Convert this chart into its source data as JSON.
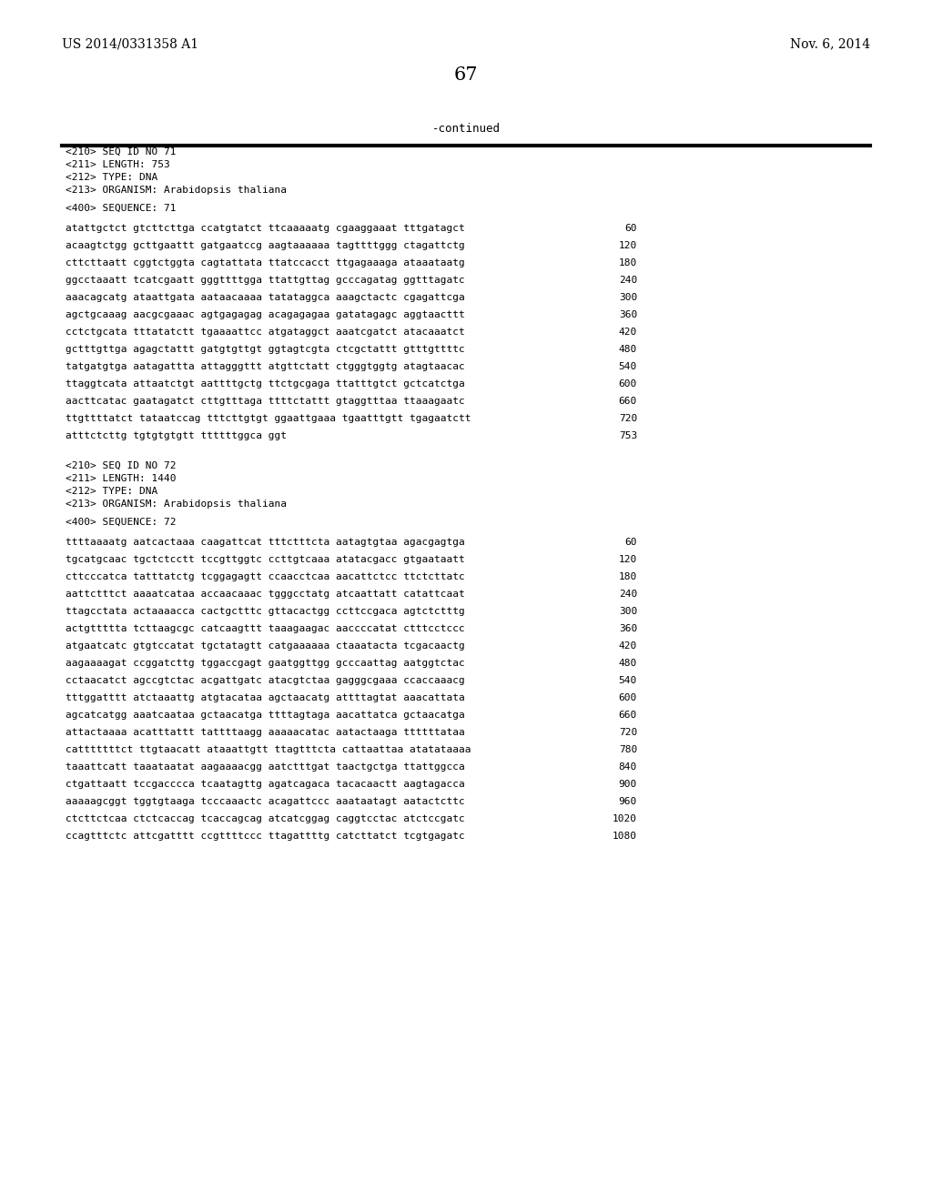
{
  "page_number": "67",
  "patent_number": "US 2014/0331358 A1",
  "patent_date": "Nov. 6, 2014",
  "continued_label": "-continued",
  "background_color": "#ffffff",
  "text_color": "#000000",
  "seq71_header": [
    "<210> SEQ ID NO 71",
    "<211> LENGTH: 753",
    "<212> TYPE: DNA",
    "<213> ORGANISM: Arabidopsis thaliana"
  ],
  "seq71_label": "<400> SEQUENCE: 71",
  "seq71_lines": [
    [
      "atattgctct gtcttcttga ccatgtatct ttcaaaaatg cgaaggaaat tttgatagct",
      "60"
    ],
    [
      "acaagtctgg gcttgaattt gatgaatccg aagtaaaaaa tagttttggg ctagattctg",
      "120"
    ],
    [
      "cttcttaatt cggtctggta cagtattata ttatccacct ttgagaaaga ataaataatg",
      "180"
    ],
    [
      "ggcctaaatt tcatcgaatt gggttttgga ttattgttag gcccagatag ggtttagatc",
      "240"
    ],
    [
      "aaacagcatg ataattgata aataacaaaa tatataggca aaagctactc cgagattcga",
      "300"
    ],
    [
      "agctgcaaag aacgcgaaac agtgagagag acagagagaa gatatagagc aggtaacttt",
      "360"
    ],
    [
      "cctctgcata tttatatctt tgaaaattcc atgataggct aaatcgatct atacaaatct",
      "420"
    ],
    [
      "gctttgttga agagctattt gatgtgttgt ggtagtcgta ctcgctattt gtttgttttc",
      "480"
    ],
    [
      "tatgatgtga aatagattta attagggttt atgttctatt ctgggtggtg atagtaacac",
      "540"
    ],
    [
      "ttaggtcata attaatctgt aattttgctg ttctgcgaga ttatttgtct gctcatctga",
      "600"
    ],
    [
      "aacttcatac gaatagatct cttgtttaga ttttctattt gtaggtttaa ttaaagaatc",
      "660"
    ],
    [
      "ttgttttatct tataatccag tttcttgtgt ggaattgaaa tgaatttgtt tgagaatctt",
      "720"
    ],
    [
      "atttctcttg tgtgtgtgtt ttttttggca ggt",
      "753"
    ]
  ],
  "seq72_header": [
    "<210> SEQ ID NO 72",
    "<211> LENGTH: 1440",
    "<212> TYPE: DNA",
    "<213> ORGANISM: Arabidopsis thaliana"
  ],
  "seq72_label": "<400> SEQUENCE: 72",
  "seq72_lines": [
    [
      "ttttaaaatg aatcactaaa caagattcat tttctttcta aatagtgtaa agacgagtga",
      "60"
    ],
    [
      "tgcatgcaac tgctctcctt tccgttggtc ccttgtcaaa atatacgacc gtgaataatt",
      "120"
    ],
    [
      "cttcccatca tatttatctg tcggagagtt ccaacctcaa aacattctcc ttctcttatc",
      "180"
    ],
    [
      "aattctttct aaaatcataa accaacaaac tgggcctatg atcaattatt catattcaat",
      "240"
    ],
    [
      "ttagcctata actaaaacca cactgctttc gttacactgg ccttccgaca agtctctttg",
      "300"
    ],
    [
      "actgttttta tcttaagcgc catcaagttt taaagaagac aaccccatat ctttcctccc",
      "360"
    ],
    [
      "atgaatcatc gtgtccatat tgctatagtt catgaaaaaa ctaaatacta tcgacaactg",
      "420"
    ],
    [
      "aagaaaagat ccggatcttg tggaccgagt gaatggttgg gcccaattag aatggtctac",
      "480"
    ],
    [
      "cctaacatct agccgtctac acgattgatc atacgtctaa gagggcgaaa ccaccaaacg",
      "540"
    ],
    [
      "tttggatttt atctaaattg atgtacataa agctaacatg attttagtat aaacattata",
      "600"
    ],
    [
      "agcatcatgg aaatcaataa gctaacatga ttttagtaga aacattatca gctaacatga",
      "660"
    ],
    [
      "attactaaaa acatttattt tattttaagg aaaaacatac aatactaaga ttttttataa",
      "720"
    ],
    [
      "catttttttct ttgtaacatt ataaattgtt ttagtttcta cattaattaa atatataaaa",
      "780"
    ],
    [
      "taaattcatt taaataatat aagaaaacgg aatctttgat taactgctga ttattggcca",
      "840"
    ],
    [
      "ctgattaatt tccgacccca tcaatagttg agatcagaca tacacaactt aagtagacca",
      "900"
    ],
    [
      "aaaaagcggt tggtgtaaga tcccaaactc acagattccc aaataatagt aatactcttc",
      "960"
    ],
    [
      "ctcttctcaa ctctcaccag tcaccagcag atcatcggag caggtcctac atctccgatc",
      "1020"
    ],
    [
      "ccagtttctc attcgatttt ccgttttccc ttagattttg catcttatct tcgtgagatc",
      "1080"
    ]
  ]
}
